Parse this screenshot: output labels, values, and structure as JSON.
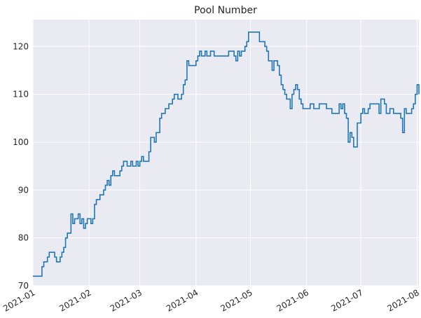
{
  "chart_data": {
    "type": "line",
    "title": "Pool Number",
    "drawstyle": "steps-post",
    "grid": true,
    "x": [
      "2021-01-01",
      "2021-01-06",
      "2021-01-07",
      "2021-01-09",
      "2021-01-10",
      "2021-01-13",
      "2021-01-14",
      "2021-01-16",
      "2021-01-17",
      "2021-01-18",
      "2021-01-19",
      "2021-01-20",
      "2021-01-22",
      "2021-01-23",
      "2021-01-24",
      "2021-01-26",
      "2021-01-27",
      "2021-01-28",
      "2021-01-29",
      "2021-01-30",
      "2021-01-31",
      "2021-02-02",
      "2021-02-03",
      "2021-02-04",
      "2021-02-05",
      "2021-02-07",
      "2021-02-09",
      "2021-02-10",
      "2021-02-11",
      "2021-02-12",
      "2021-02-13",
      "2021-02-14",
      "2021-02-15",
      "2021-02-18",
      "2021-02-19",
      "2021-02-20",
      "2021-02-22",
      "2021-02-24",
      "2021-02-25",
      "2021-02-27",
      "2021-02-28",
      "2021-03-01",
      "2021-03-02",
      "2021-03-03",
      "2021-03-06",
      "2021-03-07",
      "2021-03-09",
      "2021-03-10",
      "2021-03-12",
      "2021-03-13",
      "2021-03-15",
      "2021-03-17",
      "2021-03-19",
      "2021-03-20",
      "2021-03-22",
      "2021-03-24",
      "2021-03-25",
      "2021-03-26",
      "2021-03-27",
      "2021-03-28",
      "2021-04-01",
      "2021-04-02",
      "2021-04-03",
      "2021-04-04",
      "2021-04-06",
      "2021-04-07",
      "2021-04-09",
      "2021-04-11",
      "2021-04-19",
      "2021-04-22",
      "2021-04-23",
      "2021-04-24",
      "2021-04-25",
      "2021-04-26",
      "2021-04-28",
      "2021-04-29",
      "2021-04-30",
      "2021-05-06",
      "2021-05-09",
      "2021-05-10",
      "2021-05-11",
      "2021-05-13",
      "2021-05-14",
      "2021-05-16",
      "2021-05-17",
      "2021-05-18",
      "2021-05-19",
      "2021-05-20",
      "2021-05-21",
      "2021-05-23",
      "2021-05-24",
      "2021-05-25",
      "2021-05-26",
      "2021-05-27",
      "2021-05-28",
      "2021-05-29",
      "2021-05-30",
      "2021-06-03",
      "2021-06-05",
      "2021-06-08",
      "2021-06-12",
      "2021-06-15",
      "2021-06-19",
      "2021-06-20",
      "2021-06-21",
      "2021-06-22",
      "2021-06-23",
      "2021-06-24",
      "2021-06-25",
      "2021-06-26",
      "2021-06-27",
      "2021-06-29",
      "2021-07-01",
      "2021-07-02",
      "2021-07-03",
      "2021-07-05",
      "2021-07-06",
      "2021-07-11",
      "2021-07-12",
      "2021-07-14",
      "2021-07-15",
      "2021-07-17",
      "2021-07-19",
      "2021-07-23",
      "2021-07-24",
      "2021-07-25",
      "2021-07-26",
      "2021-07-29",
      "2021-07-30",
      "2021-07-31",
      "2021-08-01",
      "2021-08-02"
    ],
    "series": [
      {
        "name": "Pool Number",
        "color": "#1f77b4",
        "values": [
          72,
          74,
          75,
          76,
          77,
          76,
          75,
          76,
          77,
          78,
          80,
          81,
          85,
          83,
          84,
          85,
          83,
          84,
          82,
          83,
          84,
          83,
          84,
          87,
          88,
          89,
          90,
          91,
          92,
          91,
          93,
          94,
          93,
          94,
          95,
          96,
          95,
          96,
          95,
          96,
          95,
          96,
          97,
          96,
          98,
          101,
          100,
          102,
          105,
          106,
          107,
          108,
          109,
          110,
          109,
          110,
          112,
          113,
          117,
          116,
          117,
          118,
          119,
          118,
          119,
          118,
          119,
          118,
          119,
          118,
          117,
          119,
          118,
          119,
          120,
          121,
          123,
          121,
          120,
          119,
          117,
          115,
          117,
          116,
          114,
          112,
          111,
          110,
          109,
          107,
          110,
          111,
          112,
          111,
          109,
          108,
          107,
          108,
          107,
          108,
          107,
          106,
          108,
          107,
          108,
          106,
          105,
          100,
          102,
          101,
          99,
          104,
          106,
          107,
          106,
          107,
          108,
          106,
          109,
          108,
          106,
          107,
          106,
          105,
          102,
          107,
          106,
          107,
          108,
          110,
          112,
          110
        ]
      }
    ],
    "xlim": [
      "2021-01-01",
      "2021-08-02"
    ],
    "xticks": [
      {
        "value": "2021-01-01",
        "label": "2021-01"
      },
      {
        "value": "2021-02-01",
        "label": "2021-02"
      },
      {
        "value": "2021-03-01",
        "label": "2021-03"
      },
      {
        "value": "2021-04-01",
        "label": "2021-04"
      },
      {
        "value": "2021-05-01",
        "label": "2021-05"
      },
      {
        "value": "2021-06-01",
        "label": "2021-06"
      },
      {
        "value": "2021-07-01",
        "label": "2021-07"
      },
      {
        "value": "2021-08-01",
        "label": "2021-08"
      }
    ],
    "ylim": [
      70,
      125.6
    ],
    "yticks": [
      70,
      80,
      90,
      100,
      110,
      120
    ]
  }
}
